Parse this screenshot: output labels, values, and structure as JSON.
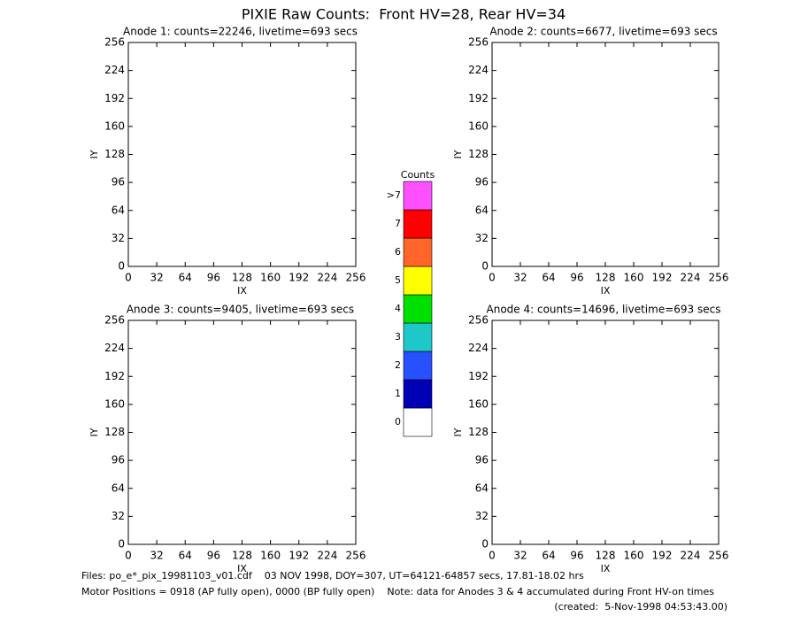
{
  "title": "PIXIE Raw Counts:  Front HV=28, Rear HV=34",
  "chart_data": [
    {
      "type": "heatmap",
      "title": "Anode 1: counts=22246, livetime=693 secs",
      "x_label": "IX",
      "y_label": "IY",
      "xlim": [
        0,
        256
      ],
      "ylim": [
        0,
        256
      ],
      "xticks": [
        0,
        32,
        64,
        96,
        128,
        160,
        192,
        224,
        256
      ],
      "yticks": [
        0,
        32,
        64,
        96,
        128,
        160,
        192,
        224,
        256
      ]
    },
    {
      "type": "heatmap",
      "title": "Anode 2: counts=6677, livetime=693 secs",
      "x_label": "IX",
      "y_label": "IY",
      "xlim": [
        0,
        256
      ],
      "ylim": [
        0,
        256
      ],
      "xticks": [
        0,
        32,
        64,
        96,
        128,
        160,
        192,
        224,
        256
      ],
      "yticks": [
        0,
        32,
        64,
        96,
        128,
        160,
        192,
        224,
        256
      ]
    },
    {
      "type": "heatmap",
      "title": "Anode 3: counts=9405, livetime=693 secs",
      "x_label": "IX",
      "y_label": "IY",
      "xlim": [
        0,
        256
      ],
      "ylim": [
        0,
        256
      ],
      "xticks": [
        0,
        32,
        64,
        96,
        128,
        160,
        192,
        224,
        256
      ],
      "yticks": [
        0,
        32,
        64,
        96,
        128,
        160,
        192,
        224,
        256
      ]
    },
    {
      "type": "heatmap",
      "title": "Anode 4: counts=14696, livetime=693 secs",
      "x_label": "IX",
      "y_label": "IY",
      "xlim": [
        0,
        256
      ],
      "ylim": [
        0,
        256
      ],
      "xticks": [
        0,
        32,
        64,
        96,
        128,
        160,
        192,
        224,
        256
      ],
      "yticks": [
        0,
        32,
        64,
        96,
        128,
        160,
        192,
        224,
        256
      ]
    }
  ],
  "colorbar": {
    "title": "Counts",
    "levels": [
      {
        "label": "0",
        "color": "#ffffff"
      },
      {
        "label": "1",
        "color": "#0000b4"
      },
      {
        "label": "2",
        "color": "#2850ff"
      },
      {
        "label": "3",
        "color": "#1ec8c8"
      },
      {
        "label": "4",
        "color": "#00e000"
      },
      {
        "label": "5",
        "color": "#ffff00"
      },
      {
        "label": "6",
        "color": "#ff6428"
      },
      {
        "label": "7",
        "color": "#ff0000"
      },
      {
        "label": ">7",
        "color": "#ff50ff"
      }
    ]
  },
  "footer": [
    "Files: po_e*_pix_19981103_v01.cdf    03 NOV 1998, DOY=307, UT=64121-64857 secs, 17.81-18.02 hrs",
    "Motor Positions = 0918 (AP fully open), 0000 (BP fully open)    Note: data for Anodes 3 & 4 accumulated during Front HV-on times",
    "(created:  5-Nov-1998 04:53:43.00)"
  ]
}
